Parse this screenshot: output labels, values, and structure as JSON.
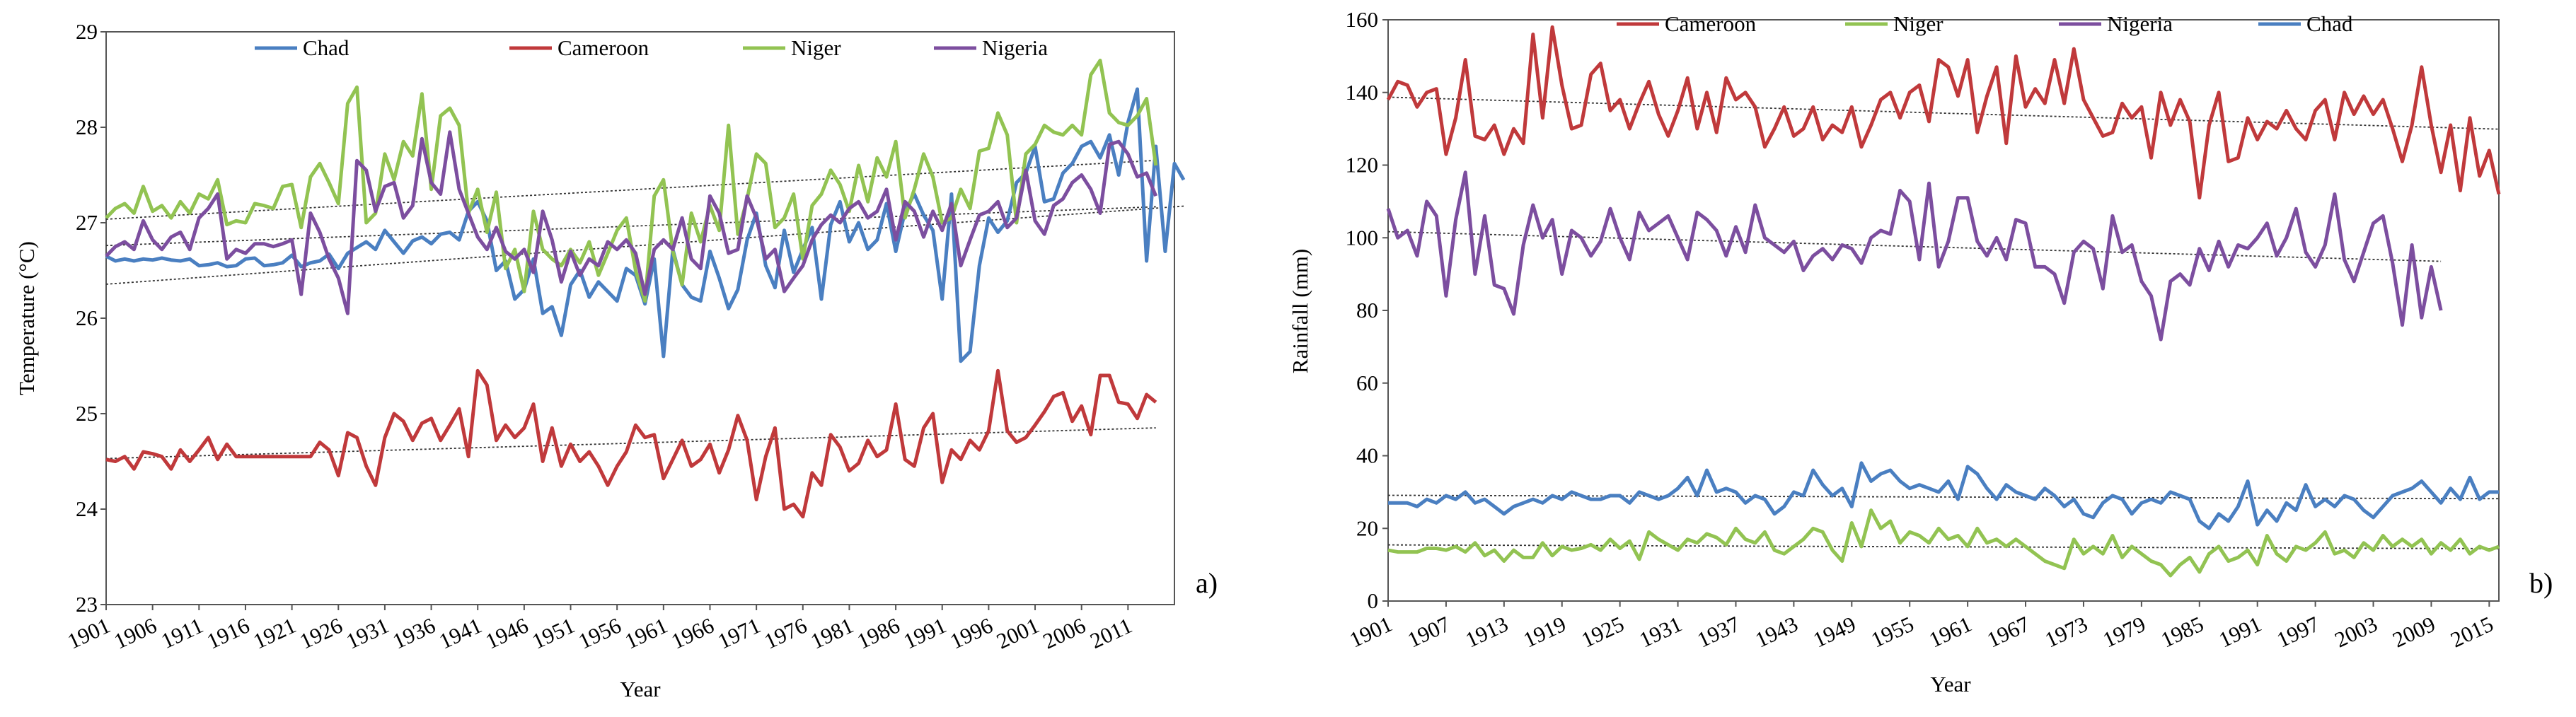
{
  "figure": {
    "panel_a_label": "a)",
    "panel_b_label": "b)"
  },
  "chart_data": [
    {
      "type": "line",
      "title": "",
      "xlabel": "Year",
      "ylabel": "Temperature (°C)",
      "ylim": [
        23,
        29
      ],
      "yticks": [
        "23",
        "24",
        "25",
        "26",
        "27",
        "28",
        "29"
      ],
      "xlim": [
        1901,
        2016
      ],
      "xticks": [
        "1901",
        "1906",
        "1911",
        "1916",
        "1921",
        "1926",
        "1931",
        "1936",
        "1941",
        "1946",
        "1951",
        "1956",
        "1961",
        "1966",
        "1971",
        "1976",
        "1981",
        "1986",
        "1991",
        "1996",
        "2001",
        "2006",
        "2011"
      ],
      "legend_position": "top",
      "trendlines": true,
      "series": [
        {
          "name": "Chad",
          "color": "#4a7fc1",
          "start_year": 1901,
          "values": [
            26.65,
            26.6,
            26.62,
            26.6,
            26.62,
            26.61,
            26.63,
            26.61,
            26.6,
            26.62,
            26.55,
            26.56,
            26.58,
            26.54,
            26.55,
            26.62,
            26.63,
            26.55,
            26.56,
            26.58,
            26.66,
            26.54,
            26.58,
            26.6,
            26.67,
            26.52,
            26.68,
            26.74,
            26.8,
            26.72,
            26.92,
            26.8,
            26.68,
            26.81,
            26.85,
            26.78,
            26.88,
            26.9,
            26.82,
            27.12,
            27.22,
            27.02,
            26.5,
            26.6,
            26.2,
            26.3,
            26.62,
            26.05,
            26.12,
            25.82,
            26.35,
            26.5,
            26.22,
            26.38,
            26.28,
            26.18,
            26.52,
            26.45,
            26.15,
            26.62,
            25.6,
            26.72,
            26.35,
            26.22,
            26.18,
            26.7,
            26.42,
            26.1,
            26.3,
            26.82,
            27.1,
            26.55,
            26.32,
            26.92,
            26.48,
            26.72,
            26.95,
            26.2,
            26.98,
            27.22,
            26.8,
            27.0,
            26.72,
            26.82,
            27.2,
            26.7,
            27.12,
            27.3,
            27.08,
            26.92,
            26.2,
            27.3,
            25.55,
            25.65,
            26.55,
            27.05,
            26.9,
            27.02,
            27.42,
            27.52,
            27.8,
            27.22,
            27.25,
            27.52,
            27.62,
            27.8,
            27.85,
            27.68,
            27.92,
            27.5,
            28.05,
            28.4,
            26.6,
            27.8,
            26.7,
            27.62,
            27.45
          ]
        },
        {
          "name": "Cameroon",
          "color": "#c0393b",
          "start_year": 1901,
          "values": [
            24.52,
            24.5,
            24.55,
            24.42,
            24.6,
            24.58,
            24.55,
            24.42,
            24.62,
            24.5,
            24.62,
            24.75,
            24.52,
            24.68,
            24.55,
            24.55,
            24.55,
            24.55,
            24.55,
            24.55,
            24.55,
            24.55,
            24.55,
            24.7,
            24.62,
            24.35,
            24.8,
            24.75,
            24.45,
            24.25,
            24.75,
            25.0,
            24.92,
            24.72,
            24.9,
            24.95,
            24.72,
            24.88,
            25.05,
            24.55,
            25.45,
            25.3,
            24.72,
            24.88,
            24.75,
            24.85,
            25.1,
            24.5,
            24.85,
            24.45,
            24.68,
            24.5,
            24.6,
            24.45,
            24.25,
            24.45,
            24.6,
            24.88,
            24.75,
            24.78,
            24.32,
            24.52,
            24.72,
            24.45,
            24.52,
            24.68,
            24.38,
            24.62,
            24.98,
            24.72,
            24.1,
            24.55,
            24.85,
            24.0,
            24.05,
            23.92,
            24.38,
            24.25,
            24.78,
            24.65,
            24.4,
            24.48,
            24.72,
            24.55,
            24.62,
            25.1,
            24.52,
            24.45,
            24.85,
            25.0,
            24.28,
            24.62,
            24.52,
            24.72,
            24.62,
            24.82,
            25.45,
            24.82,
            24.7,
            24.75,
            24.88,
            25.02,
            25.18,
            25.22,
            24.92,
            25.08,
            24.78,
            25.4,
            25.4,
            25.12,
            25.1,
            24.95,
            25.2,
            25.12
          ]
        },
        {
          "name": "Niger",
          "color": "#92c352",
          "start_year": 1901,
          "values": [
            27.05,
            27.15,
            27.2,
            27.1,
            27.38,
            27.12,
            27.18,
            27.05,
            27.22,
            27.1,
            27.3,
            27.25,
            27.45,
            26.98,
            27.02,
            27.0,
            27.2,
            27.18,
            27.15,
            27.38,
            27.4,
            26.95,
            27.48,
            27.62,
            27.42,
            27.2,
            28.25,
            28.42,
            27.0,
            27.1,
            27.72,
            27.45,
            27.85,
            27.7,
            28.35,
            27.35,
            28.12,
            28.2,
            28.02,
            27.1,
            27.35,
            26.9,
            27.32,
            26.52,
            26.72,
            26.28,
            27.12,
            26.72,
            26.62,
            26.55,
            26.72,
            26.58,
            26.8,
            26.45,
            26.68,
            26.92,
            27.05,
            26.5,
            26.18,
            27.28,
            27.45,
            26.7,
            26.35,
            27.1,
            26.8,
            27.18,
            26.92,
            28.02,
            26.88,
            27.25,
            27.72,
            27.62,
            26.95,
            27.05,
            27.3,
            26.62,
            27.18,
            27.3,
            27.55,
            27.4,
            27.12,
            27.6,
            27.22,
            27.68,
            27.48,
            27.85,
            27.05,
            27.35,
            27.72,
            27.48,
            27.0,
            27.05,
            27.35,
            27.15,
            27.75,
            27.78,
            28.15,
            27.92,
            27.0,
            27.72,
            27.82,
            28.02,
            27.95,
            27.92,
            28.02,
            27.92,
            28.55,
            28.7,
            28.15,
            28.05,
            28.02,
            28.12,
            28.3,
            27.6
          ]
        },
        {
          "name": "Nigeria",
          "color": "#7c4e9f",
          "start_year": 1901,
          "values": [
            26.65,
            26.75,
            26.8,
            26.72,
            27.02,
            26.82,
            26.72,
            26.85,
            26.9,
            26.72,
            27.05,
            27.15,
            27.3,
            26.62,
            26.72,
            26.68,
            26.78,
            26.78,
            26.75,
            26.78,
            26.82,
            26.25,
            27.1,
            26.9,
            26.62,
            26.42,
            26.05,
            27.65,
            27.55,
            27.12,
            27.38,
            27.42,
            27.05,
            27.18,
            27.88,
            27.42,
            27.3,
            27.95,
            27.35,
            27.1,
            26.85,
            26.72,
            26.95,
            26.7,
            26.62,
            26.72,
            26.48,
            27.12,
            26.82,
            26.38,
            26.7,
            26.45,
            26.62,
            26.55,
            26.8,
            26.72,
            26.82,
            26.68,
            26.25,
            26.72,
            26.82,
            26.72,
            27.05,
            26.62,
            26.52,
            27.28,
            27.1,
            26.68,
            26.72,
            27.28,
            27.05,
            26.62,
            26.72,
            26.28,
            26.42,
            26.55,
            26.82,
            26.98,
            27.08,
            27.0,
            27.15,
            27.22,
            27.05,
            27.12,
            27.35,
            26.82,
            27.22,
            27.12,
            26.85,
            27.12,
            26.92,
            27.2,
            26.55,
            26.82,
            27.08,
            27.12,
            27.22,
            26.95,
            27.05,
            27.55,
            27.02,
            26.88,
            27.18,
            27.25,
            27.42,
            27.5,
            27.35,
            27.1,
            27.82,
            27.85,
            27.72,
            27.48,
            27.52,
            27.28
          ]
        }
      ]
    },
    {
      "type": "line",
      "title": "",
      "xlabel": "Year",
      "ylabel": "Rainfall (mm)",
      "ylim": [
        0,
        160
      ],
      "yticks": [
        "0",
        "20",
        "40",
        "60",
        "80",
        "100",
        "120",
        "140",
        "160"
      ],
      "xlim": [
        1901,
        2016
      ],
      "xticks": [
        "1901",
        "1907",
        "1913",
        "1919",
        "1925",
        "1931",
        "1937",
        "1943",
        "1949",
        "1955",
        "1961",
        "1967",
        "1973",
        "1979",
        "1985",
        "1991",
        "1997",
        "2003",
        "2009",
        "2015"
      ],
      "legend_position": "top",
      "trendlines": true,
      "series": [
        {
          "name": "Cameroon",
          "color": "#c0393b",
          "start_year": 1901,
          "values": [
            138,
            143,
            142,
            136,
            140,
            141,
            123,
            133,
            149,
            128,
            127,
            131,
            123,
            130,
            126,
            156,
            133,
            158,
            142,
            130,
            131,
            145,
            148,
            135,
            138,
            130,
            137,
            143,
            134,
            128,
            135,
            144,
            130,
            140,
            129,
            144,
            138,
            140,
            136,
            125,
            130,
            136,
            128,
            130,
            136,
            127,
            131,
            129,
            136,
            125,
            131,
            138,
            140,
            133,
            140,
            142,
            132,
            149,
            147,
            139,
            149,
            129,
            139,
            147,
            126,
            150,
            136,
            141,
            137,
            149,
            137,
            152,
            138,
            133,
            128,
            129,
            137,
            133,
            136,
            122,
            140,
            131,
            138,
            132,
            111,
            131,
            140,
            121,
            122,
            133,
            127,
            132,
            130,
            135,
            130,
            127,
            135,
            138,
            127,
            140,
            134,
            139,
            134,
            138,
            130,
            121,
            131,
            147,
            131,
            118,
            131,
            113,
            133,
            117,
            124,
            112
          ]
        },
        {
          "name": "Niger",
          "color": "#92c352",
          "start_year": 1901,
          "values": [
            14,
            13.5,
            13.5,
            13.5,
            14.5,
            14.5,
            14,
            15,
            13.5,
            16,
            12.5,
            14,
            11,
            14,
            12,
            12,
            16,
            12.5,
            15,
            14,
            14.5,
            15.5,
            14,
            17,
            14.5,
            16.5,
            11.5,
            19,
            17,
            15.5,
            14,
            17,
            16,
            18.5,
            17.5,
            15.5,
            20,
            17,
            16,
            19,
            14,
            13,
            15,
            17,
            20,
            19,
            14,
            11,
            21.5,
            15,
            25,
            20,
            22,
            16,
            19,
            18,
            16,
            20,
            17,
            18,
            15,
            20,
            16,
            17,
            15,
            17,
            15,
            13,
            11,
            10,
            9,
            17,
            13,
            15,
            13,
            18,
            12,
            15,
            13,
            11,
            10,
            7,
            10,
            12,
            8,
            13,
            15,
            11,
            12,
            14,
            10,
            18,
            13,
            11,
            15,
            14,
            16,
            19,
            13,
            14,
            12,
            16,
            14,
            18,
            15,
            17,
            15,
            17,
            13,
            16,
            14,
            17,
            13,
            15,
            14,
            15
          ]
        },
        {
          "name": "Nigeria",
          "color": "#7c4e9f",
          "start_year": 1901,
          "values": [
            108,
            100,
            102,
            95,
            110,
            106,
            84,
            105,
            118,
            90,
            106,
            87,
            86,
            79,
            98,
            109,
            100,
            105,
            90,
            102,
            100,
            95,
            99,
            108,
            100,
            94,
            107,
            102,
            104,
            106,
            100,
            94,
            107,
            105,
            102,
            95,
            103,
            96,
            109,
            100,
            98,
            96,
            99,
            91,
            95,
            97,
            94,
            98,
            97,
            93,
            100,
            102,
            101,
            113,
            110,
            94,
            115,
            92,
            99,
            111,
            111,
            99,
            95,
            100,
            94,
            105,
            104,
            92,
            92,
            90,
            82,
            96,
            99,
            97,
            86,
            106,
            96,
            98,
            88,
            84,
            72,
            88,
            90,
            87,
            97,
            91,
            99,
            92,
            98,
            97,
            100,
            104,
            95,
            100,
            108,
            96,
            92,
            98,
            112,
            94,
            88,
            96,
            104,
            106,
            93,
            76,
            98,
            78,
            92,
            80
          ]
        },
        {
          "name": "Chad",
          "color": "#4a7fc1",
          "start_year": 1901,
          "values": [
            27,
            27,
            27,
            26,
            28,
            27,
            29,
            28,
            30,
            27,
            28,
            26,
            24,
            26,
            27,
            28,
            27,
            29,
            28,
            30,
            29,
            28,
            28,
            29,
            29,
            27,
            30,
            29,
            28,
            29,
            31,
            34,
            29,
            36,
            30,
            31,
            30,
            27,
            29,
            28,
            24,
            26,
            30,
            29,
            36,
            32,
            29,
            31,
            26,
            38,
            33,
            35,
            36,
            33,
            31,
            32,
            31,
            30,
            33,
            28,
            37,
            35,
            31,
            28,
            32,
            30,
            29,
            28,
            31,
            29,
            26,
            28,
            24,
            23,
            27,
            29,
            28,
            24,
            27,
            28,
            27,
            30,
            29,
            28,
            22,
            20,
            24,
            22,
            26,
            33,
            21,
            25,
            22,
            27,
            25,
            32,
            26,
            28,
            26,
            29,
            28,
            25,
            23,
            26,
            29,
            30,
            31,
            33,
            30,
            27,
            31,
            28,
            34,
            28,
            30,
            30
          ]
        }
      ]
    }
  ]
}
